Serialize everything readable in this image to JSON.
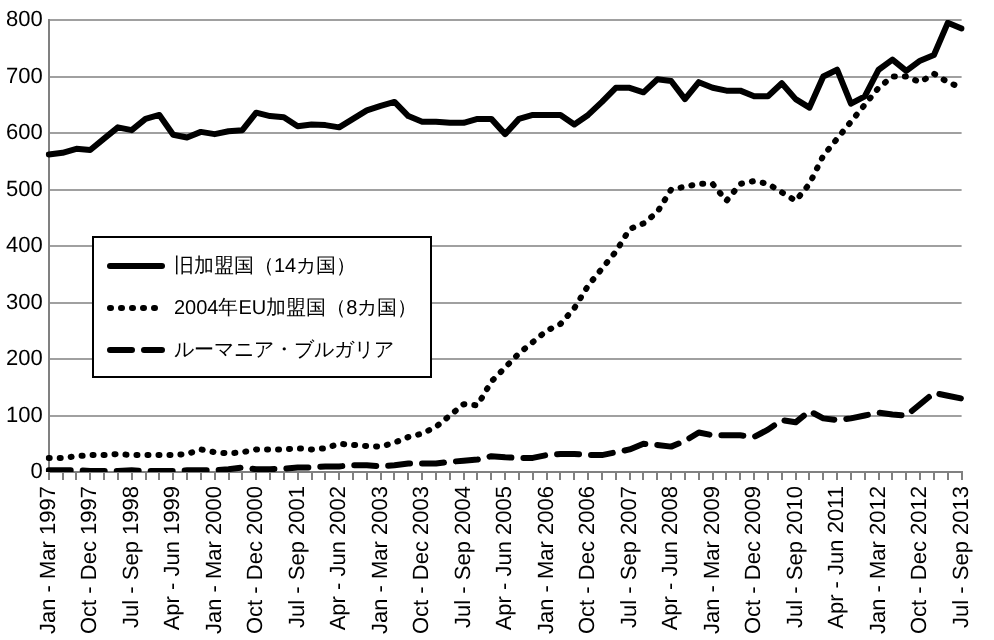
{
  "chart_data": {
    "type": "line",
    "categories": [
      "Jan - Mar 1997",
      null,
      null,
      "Oct - Dec 1997",
      null,
      null,
      "Jul - Sep 1998",
      null,
      null,
      "Apr - Jun 1999",
      null,
      null,
      "Jan - Mar 2000",
      null,
      null,
      "Oct - Dec 2000",
      null,
      null,
      "Jul - Sep 2001",
      null,
      null,
      "Apr - Jun 2002",
      null,
      null,
      "Jan - Mar 2003",
      null,
      null,
      "Oct - Dec 2003",
      null,
      null,
      "Jul - Sep 2004",
      null,
      null,
      "Apr - Jun 2005",
      null,
      null,
      "Jan - Mar 2006",
      null,
      null,
      "Oct - Dec 2006",
      null,
      null,
      "Jul - Sep 2007",
      null,
      null,
      "Apr - Jun 2008",
      null,
      null,
      "Jan - Mar 2009",
      null,
      null,
      "Oct - Dec 2009",
      null,
      null,
      "Jul - Sep 2010",
      null,
      null,
      "Apr - Jun 2011",
      null,
      null,
      "Jan - Mar 2012",
      null,
      null,
      "Oct - Dec 2012",
      null,
      null,
      "Jul - Sep 2013"
    ],
    "series": [
      {
        "name": "旧加盟国（14カ国）",
        "color": "#000000",
        "line_style": "solid",
        "values": [
          562,
          565,
          572,
          570,
          590,
          610,
          605,
          625,
          632,
          597,
          592,
          602,
          598,
          603,
          605,
          636,
          630,
          628,
          612,
          615,
          614,
          610,
          625,
          640,
          648,
          655,
          630,
          620,
          620,
          618,
          618,
          625,
          625,
          598,
          625,
          632,
          632,
          632,
          615,
          632,
          655,
          680,
          680,
          672,
          695,
          692,
          660,
          690,
          680,
          675,
          675,
          665,
          665,
          688,
          660,
          645,
          700,
          712,
          652,
          665,
          712,
          730,
          710,
          728,
          738,
          795,
          785
        ]
      },
      {
        "name": "2004年EU加盟国（8カ国）",
        "color": "#000000",
        "line_style": "dotted",
        "values": [
          25,
          25,
          28,
          30,
          30,
          32,
          30,
          30,
          30,
          30,
          32,
          40,
          35,
          33,
          35,
          40,
          40,
          40,
          42,
          40,
          42,
          50,
          48,
          46,
          45,
          52,
          62,
          68,
          80,
          100,
          120,
          118,
          160,
          185,
          210,
          230,
          250,
          262,
          290,
          330,
          360,
          390,
          430,
          440,
          460,
          500,
          505,
          510,
          510,
          480,
          510,
          515,
          510,
          495,
          480,
          510,
          560,
          590,
          620,
          650,
          680,
          700,
          700,
          690,
          705,
          690,
          680
        ]
      },
      {
        "name": "ルーマニア・ブルガリア",
        "color": "#000000",
        "line_style": "dashed",
        "values": [
          3,
          3,
          3,
          2,
          2,
          2,
          3,
          2,
          2,
          2,
          3,
          3,
          3,
          5,
          8,
          5,
          5,
          6,
          8,
          8,
          10,
          10,
          12,
          12,
          10,
          12,
          15,
          15,
          15,
          18,
          20,
          22,
          28,
          26,
          25,
          25,
          30,
          32,
          32,
          30,
          30,
          35,
          40,
          50,
          48,
          45,
          55,
          70,
          65,
          65,
          65,
          62,
          75,
          92,
          88,
          108,
          95,
          92,
          95,
          100,
          105,
          102,
          100,
          120,
          140,
          135,
          130
        ]
      }
    ],
    "ylim": [
      0,
      800
    ],
    "yticks": [
      0,
      100,
      200,
      300,
      400,
      500,
      600,
      700,
      800
    ],
    "grid": "y",
    "legend": "left",
    "marker": "none"
  }
}
